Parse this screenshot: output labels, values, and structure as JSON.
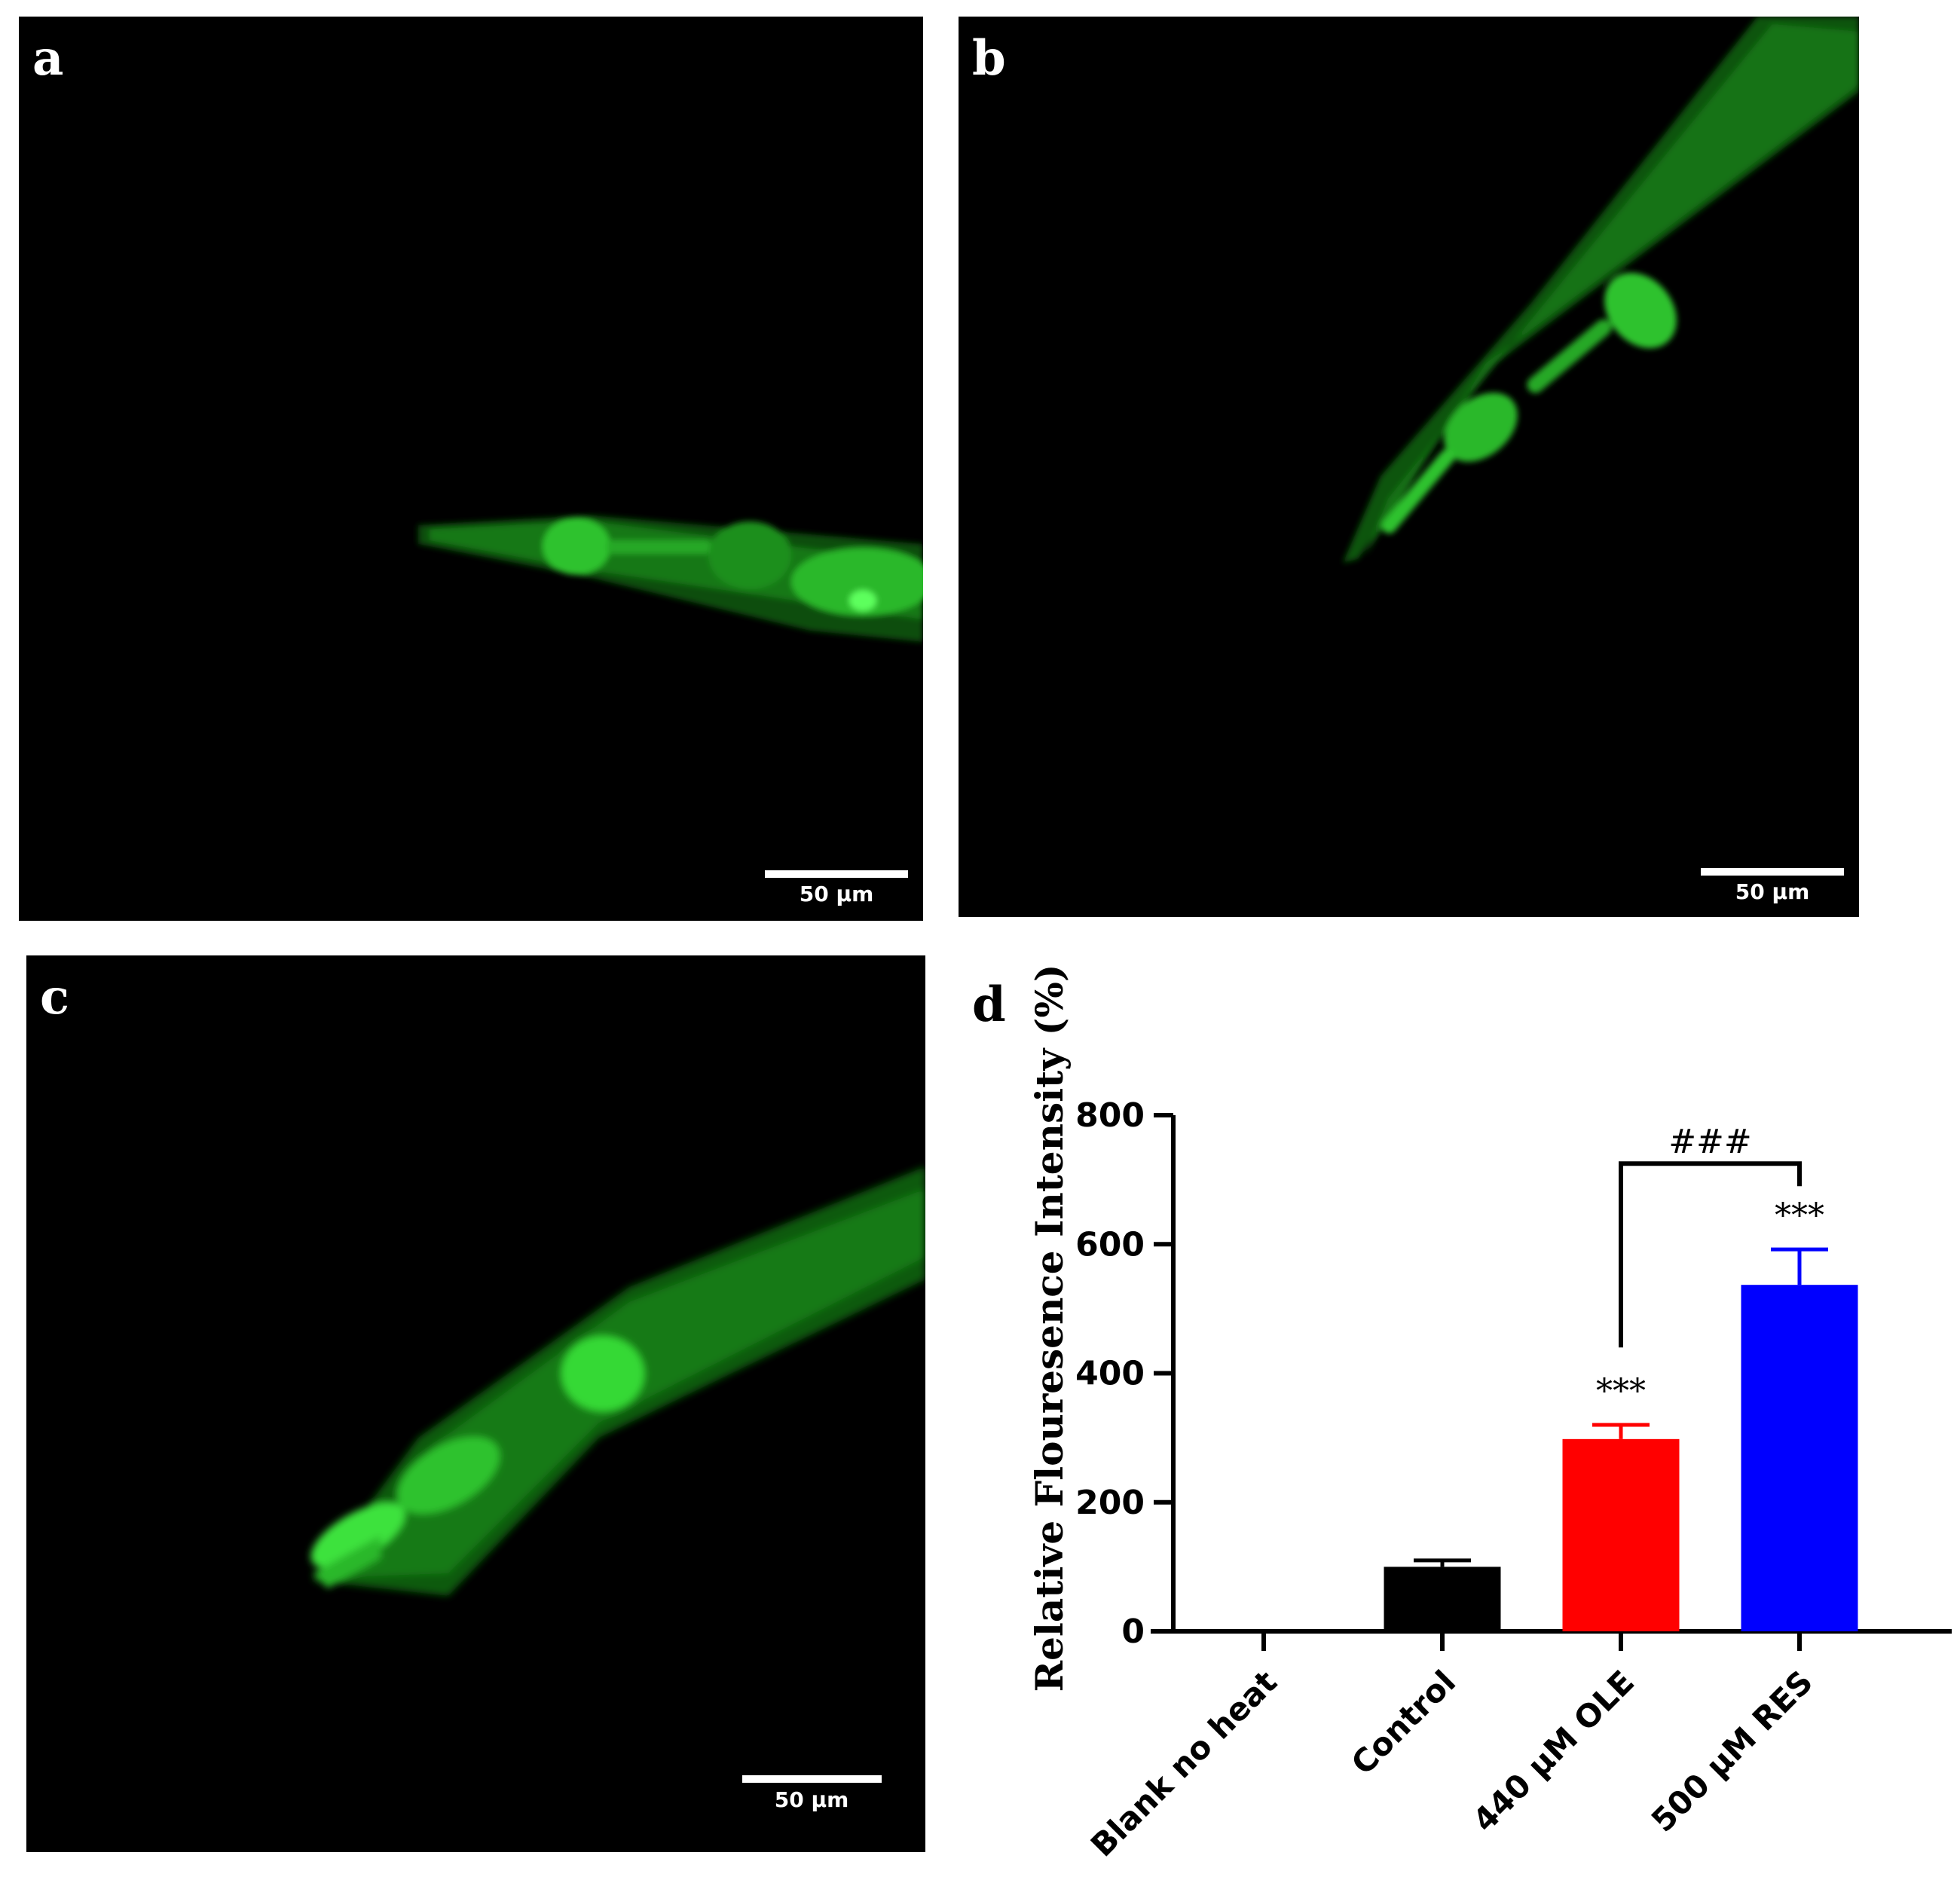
{
  "panels": [
    {
      "id": "a",
      "letter": "a",
      "scale_label": "50 μm"
    },
    {
      "id": "b",
      "letter": "b",
      "scale_label": "50 μm"
    },
    {
      "id": "c",
      "letter": "c",
      "scale_label": "50 μm"
    }
  ],
  "chart_data": {
    "panel_letter": "d",
    "type": "bar",
    "ylabel": "Relative Flouresence Intensity (%)",
    "xlabel": "",
    "ylim": [
      0,
      800
    ],
    "yticks": [
      0,
      200,
      400,
      600,
      800
    ],
    "categories": [
      "Blank no heat",
      "Control",
      "440 μM OLE",
      "500 μM RES"
    ],
    "values": [
      0,
      100,
      298,
      537
    ],
    "errors": [
      0,
      10,
      22,
      55
    ],
    "colors": [
      "#000000",
      "#000000",
      "#ff0000",
      "#0000ff"
    ],
    "annotations": [
      {
        "category": "440 μM OLE",
        "text": "***"
      },
      {
        "category": "500 μM RES",
        "text": "***"
      }
    ],
    "bracket": {
      "from": "440 μM OLE",
      "to": "500 μM RES",
      "text": "###"
    },
    "grid": false,
    "legend": "none"
  }
}
